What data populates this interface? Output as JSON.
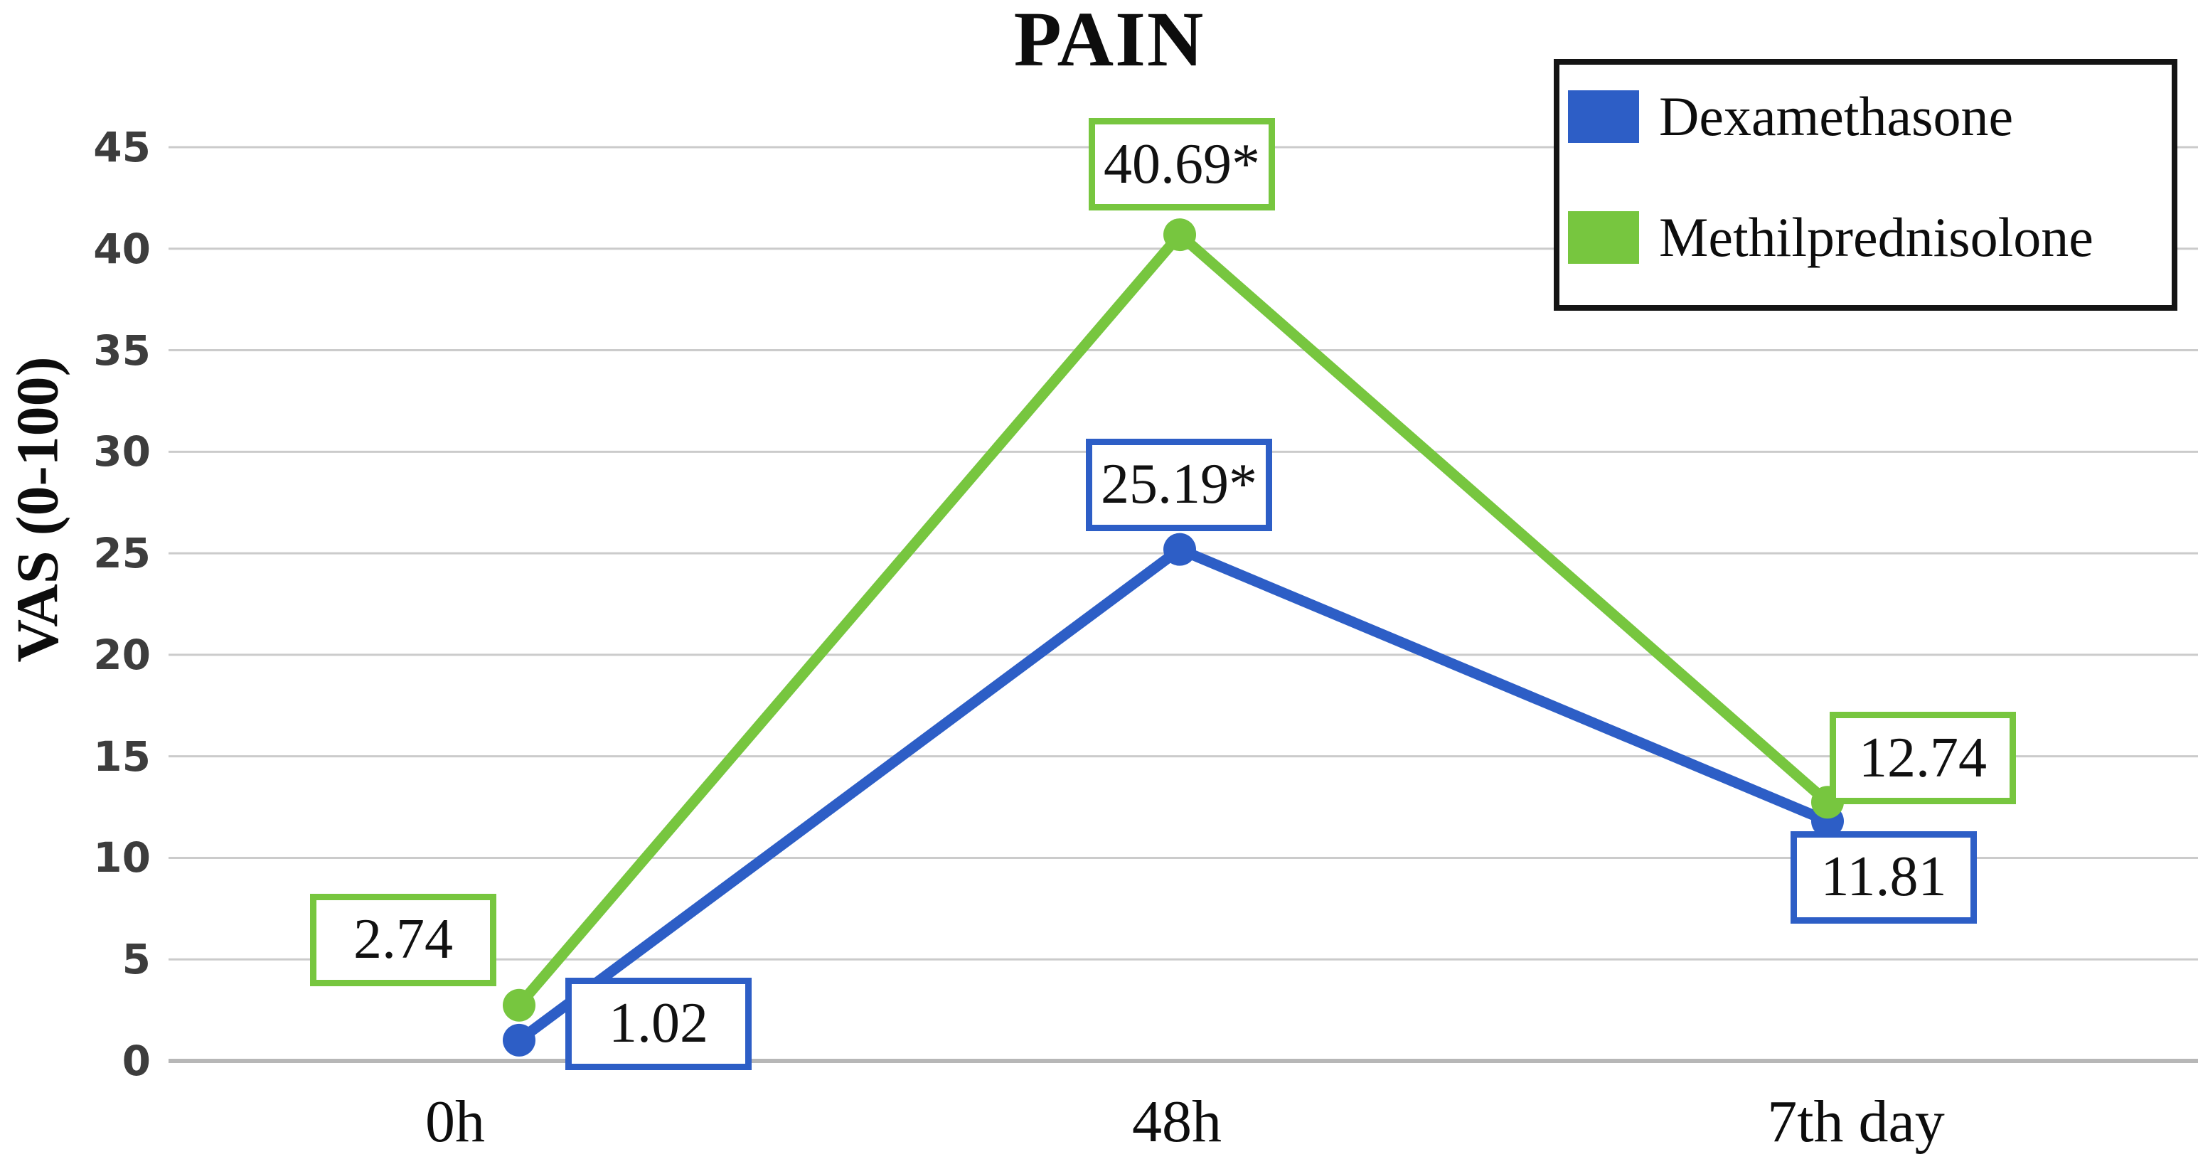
{
  "chart_data": {
    "type": "line",
    "title": "PAIN",
    "ylabel": "VAS (0-100)",
    "xlabel": "",
    "categories": [
      "0h",
      "48h",
      "7th day"
    ],
    "ylim": [
      0,
      45
    ],
    "ytick_step": 5,
    "yticks": [
      0,
      5,
      10,
      15,
      20,
      25,
      30,
      35,
      40,
      45
    ],
    "grid": true,
    "legend_position": "top-right",
    "legend_border_color": "#141414",
    "grid_color": "#cbcbcb",
    "series": [
      {
        "name": "Dexamethasone",
        "color": "#2d5ec6",
        "values": [
          1.02,
          25.19,
          11.81
        ],
        "point_labels": [
          "1.02",
          "25.19*",
          "11.81"
        ]
      },
      {
        "name": "Methilprednisolone",
        "color": "#77c63f",
        "values": [
          2.74,
          40.69,
          12.74
        ],
        "point_labels": [
          "2.74",
          "40.69*",
          "12.74"
        ]
      }
    ]
  }
}
